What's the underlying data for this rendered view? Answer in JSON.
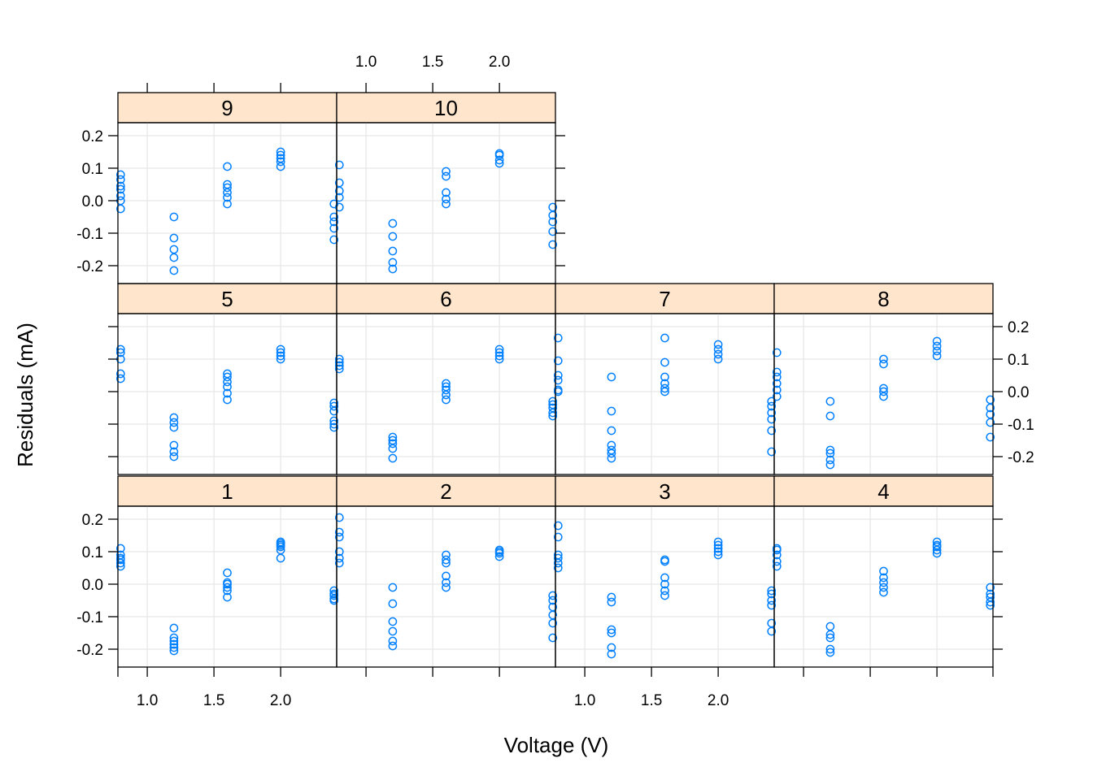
{
  "chart_data": {
    "type": "scatter",
    "xlabel": "Voltage (V)",
    "ylabel": "Residuals (mA)",
    "xlim": [
      0.78,
      2.42
    ],
    "ylim": [
      -0.255,
      0.24
    ],
    "x_ticks": [
      1.0,
      1.5,
      2.0
    ],
    "x_tick_labels": [
      "1.0",
      "1.5",
      "2.0"
    ],
    "y_ticks": [
      -0.2,
      -0.1,
      0.0,
      0.1,
      0.2
    ],
    "y_tick_labels": [
      "-0.2",
      "-0.1",
      "0.0",
      "0.1",
      "0.2"
    ],
    "grid": true,
    "strip_color": "#ffe5cc",
    "point_color": "#0080ff",
    "panels": [
      {
        "label": "1",
        "points": [
          {
            "x": 0.8,
            "y": [
              0.055,
              0.065,
              0.075,
              0.08,
              0.09,
              0.11
            ]
          },
          {
            "x": 1.2,
            "y": [
              -0.205,
              -0.195,
              -0.185,
              -0.175,
              -0.165,
              -0.135
            ]
          },
          {
            "x": 1.6,
            "y": [
              -0.04,
              -0.02,
              -0.01,
              0.0,
              0.005,
              0.035
            ]
          },
          {
            "x": 2.0,
            "y": [
              0.08,
              0.105,
              0.115,
              0.12,
              0.125,
              0.13
            ]
          },
          {
            "x": 2.4,
            "y": [
              -0.05,
              -0.045,
              -0.035,
              -0.03,
              -0.02
            ]
          }
        ]
      },
      {
        "label": "2",
        "points": [
          {
            "x": 0.8,
            "y": [
              0.065,
              0.08,
              0.1,
              0.145,
              0.16,
              0.205
            ]
          },
          {
            "x": 1.2,
            "y": [
              -0.19,
              -0.175,
              -0.145,
              -0.115,
              -0.06,
              -0.01
            ]
          },
          {
            "x": 1.6,
            "y": [
              -0.01,
              0.005,
              0.025,
              0.065,
              0.075,
              0.09
            ]
          },
          {
            "x": 2.0,
            "y": [
              0.085,
              0.095,
              0.1,
              0.105
            ]
          },
          {
            "x": 2.4,
            "y": [
              -0.165,
              -0.12,
              -0.095,
              -0.07,
              -0.05,
              -0.035
            ]
          }
        ]
      },
      {
        "label": "3",
        "points": [
          {
            "x": 0.8,
            "y": [
              0.05,
              0.065,
              0.08,
              0.09,
              0.145,
              0.18
            ]
          },
          {
            "x": 1.2,
            "y": [
              -0.215,
              -0.195,
              -0.15,
              -0.14,
              -0.055,
              -0.04
            ]
          },
          {
            "x": 1.6,
            "y": [
              -0.035,
              -0.02,
              0.0,
              0.02,
              0.07,
              0.075
            ]
          },
          {
            "x": 2.0,
            "y": [
              0.09,
              0.1,
              0.11,
              0.12,
              0.13
            ]
          },
          {
            "x": 2.4,
            "y": [
              -0.145,
              -0.12,
              -0.065,
              -0.05,
              -0.03,
              -0.02
            ]
          }
        ]
      },
      {
        "label": "4",
        "points": [
          {
            "x": 0.8,
            "y": [
              0.055,
              0.07,
              0.09,
              0.105,
              0.11
            ]
          },
          {
            "x": 1.2,
            "y": [
              -0.21,
              -0.2,
              -0.165,
              -0.155,
              -0.13
            ]
          },
          {
            "x": 1.6,
            "y": [
              -0.025,
              -0.01,
              0.005,
              0.02,
              0.04
            ]
          },
          {
            "x": 2.0,
            "y": [
              0.095,
              0.105,
              0.115,
              0.12,
              0.13
            ]
          },
          {
            "x": 2.4,
            "y": [
              -0.065,
              -0.055,
              -0.04,
              -0.03,
              -0.01
            ]
          }
        ]
      },
      {
        "label": "5",
        "points": [
          {
            "x": 0.8,
            "y": [
              0.04,
              0.055,
              0.1,
              0.12,
              0.13
            ]
          },
          {
            "x": 1.2,
            "y": [
              -0.2,
              -0.185,
              -0.165,
              -0.11,
              -0.095,
              -0.08
            ]
          },
          {
            "x": 1.6,
            "y": [
              -0.025,
              -0.005,
              0.015,
              0.03,
              0.045,
              0.055
            ]
          },
          {
            "x": 2.0,
            "y": [
              0.1,
              0.11,
              0.12,
              0.13
            ]
          },
          {
            "x": 2.4,
            "y": [
              -0.11,
              -0.1,
              -0.09,
              -0.06,
              -0.045,
              -0.035
            ]
          }
        ]
      },
      {
        "label": "6",
        "points": [
          {
            "x": 0.8,
            "y": [
              0.07,
              0.08,
              0.09,
              0.1
            ]
          },
          {
            "x": 1.2,
            "y": [
              -0.205,
              -0.175,
              -0.16,
              -0.15,
              -0.14
            ]
          },
          {
            "x": 1.6,
            "y": [
              -0.025,
              -0.01,
              0.005,
              0.015,
              0.025
            ]
          },
          {
            "x": 2.0,
            "y": [
              0.1,
              0.11,
              0.12,
              0.13
            ]
          },
          {
            "x": 2.4,
            "y": [
              -0.075,
              -0.065,
              -0.05,
              -0.04,
              -0.03
            ]
          }
        ]
      },
      {
        "label": "7",
        "points": [
          {
            "x": 0.8,
            "y": [
              0.0,
              0.005,
              0.035,
              0.05,
              0.095,
              0.165
            ]
          },
          {
            "x": 1.2,
            "y": [
              -0.205,
              -0.19,
              -0.18,
              -0.165,
              -0.12,
              -0.06,
              0.045
            ]
          },
          {
            "x": 1.6,
            "y": [
              0.0,
              0.01,
              0.025,
              0.045,
              0.09,
              0.165
            ]
          },
          {
            "x": 2.0,
            "y": [
              0.1,
              0.115,
              0.13,
              0.145
            ]
          },
          {
            "x": 2.4,
            "y": [
              -0.185,
              -0.12,
              -0.085,
              -0.065,
              -0.045,
              -0.03
            ]
          }
        ]
      },
      {
        "label": "8",
        "points": [
          {
            "x": 0.8,
            "y": [
              -0.015,
              0.005,
              0.025,
              0.045,
              0.06,
              0.12
            ]
          },
          {
            "x": 1.2,
            "y": [
              -0.225,
              -0.21,
              -0.19,
              -0.18,
              -0.075,
              -0.03
            ]
          },
          {
            "x": 1.6,
            "y": [
              -0.015,
              0.0,
              0.01,
              0.085,
              0.1
            ]
          },
          {
            "x": 2.0,
            "y": [
              0.11,
              0.125,
              0.14,
              0.155
            ]
          },
          {
            "x": 2.4,
            "y": [
              -0.14,
              -0.095,
              -0.07,
              -0.05,
              -0.025
            ]
          }
        ]
      },
      {
        "label": "9",
        "points": [
          {
            "x": 0.8,
            "y": [
              -0.025,
              0.0,
              0.015,
              0.035,
              0.045,
              0.065,
              0.08
            ]
          },
          {
            "x": 1.2,
            "y": [
              -0.215,
              -0.175,
              -0.15,
              -0.115,
              -0.05
            ]
          },
          {
            "x": 1.6,
            "y": [
              -0.01,
              0.01,
              0.025,
              0.04,
              0.05,
              0.105
            ]
          },
          {
            "x": 2.0,
            "y": [
              0.105,
              0.12,
              0.13,
              0.14,
              0.15
            ]
          },
          {
            "x": 2.4,
            "y": [
              -0.12,
              -0.085,
              -0.065,
              -0.05,
              -0.01
            ]
          }
        ]
      },
      {
        "label": "10",
        "points": [
          {
            "x": 0.8,
            "y": [
              -0.02,
              0.01,
              0.03,
              0.055,
              0.11
            ]
          },
          {
            "x": 1.2,
            "y": [
              -0.21,
              -0.19,
              -0.155,
              -0.11,
              -0.07
            ]
          },
          {
            "x": 1.6,
            "y": [
              -0.01,
              0.005,
              0.025,
              0.075,
              0.09
            ]
          },
          {
            "x": 2.0,
            "y": [
              0.115,
              0.125,
              0.14,
              0.145
            ]
          },
          {
            "x": 2.4,
            "y": [
              -0.135,
              -0.095,
              -0.065,
              -0.045,
              -0.02
            ]
          }
        ]
      }
    ]
  }
}
